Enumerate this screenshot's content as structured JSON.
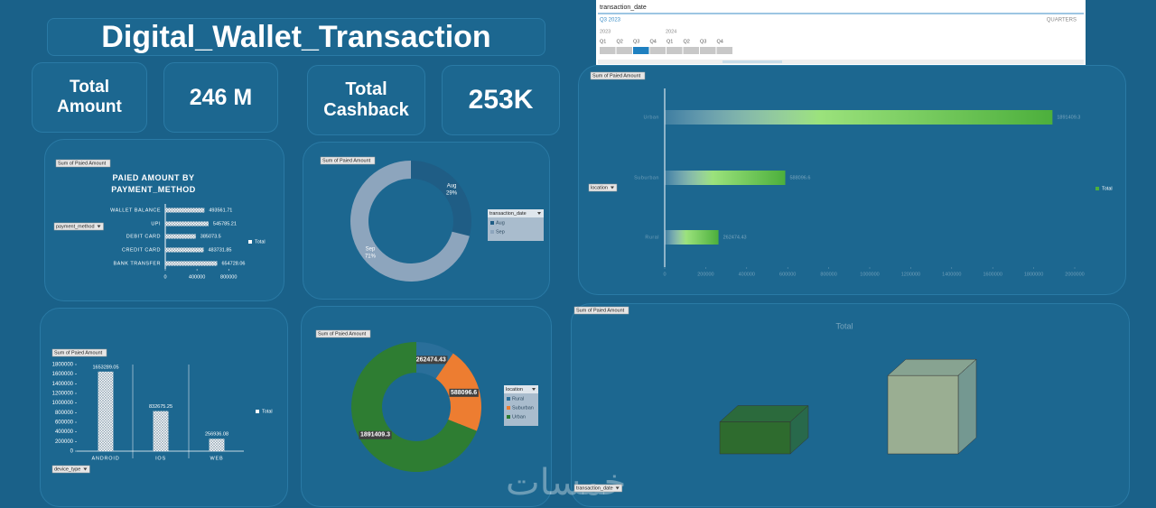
{
  "header": {
    "title": "Digital_Wallet_Transaction"
  },
  "kpis": [
    {
      "label": "Total Amount",
      "value": "246 M"
    },
    {
      "label": "Total Cashback",
      "value": "253K"
    }
  ],
  "timeline": {
    "title": "transaction_date",
    "selection": "Q3 2023",
    "level": "QUARTERS",
    "years": [
      "2023",
      "2024"
    ],
    "quarters": [
      "Q1",
      "Q2",
      "Q3",
      "Q4",
      "Q1",
      "Q2",
      "Q3",
      "Q4"
    ],
    "selected": 2
  },
  "watermark": "خمسات",
  "chart_data": [
    {
      "type": "hbar",
      "field_button": "Sum of Paied Amount",
      "title": "PAIED AMOUNT BY PAYMENT_METHOD",
      "filter": "payment_method",
      "categories": [
        "WALLET BALANCE",
        "UPI",
        "DEBIT CARD",
        "CREDIT CARD",
        "BANK TRANSFER"
      ],
      "series": [
        {
          "name": "Total",
          "color": "#ffffff",
          "values": [
            493561.71,
            545785.21,
            385073.5,
            483731.85,
            654728.06
          ]
        }
      ],
      "xlim": [
        0,
        900000
      ],
      "xticks": [
        0,
        400000,
        800000
      ]
    },
    {
      "type": "donut",
      "field_button": "Sum of Paied Amount",
      "legend_title": "transaction_date",
      "categories": [
        "Aug",
        "Sep"
      ],
      "values": [
        29,
        71
      ],
      "value_labels": [
        "29%",
        "71%"
      ],
      "colors": [
        "#1f5d85",
        "#8da5bd"
      ]
    },
    {
      "type": "hbar",
      "field_button": "Sum of Paied Amount",
      "filter": "location",
      "categories": [
        "Urban",
        "Suburban",
        "Rural"
      ],
      "series": [
        {
          "name": "Total",
          "color": "#4caf3c",
          "values": [
            1891409.3,
            588096.6,
            262474.43
          ]
        }
      ],
      "xlim": [
        0,
        2000000
      ],
      "xticks": [
        0,
        200000,
        400000,
        600000,
        800000,
        1000000,
        1200000,
        1400000,
        1600000,
        1800000,
        2000000
      ]
    },
    {
      "type": "bar",
      "field_button": "Sum of Paied Amount",
      "filter": "device_type",
      "categories": [
        "ANDROID",
        "IOS",
        "WEB"
      ],
      "series": [
        {
          "name": "Total",
          "color": "#ffffff",
          "values": [
            1653289.05,
            832675.25,
            256936.08
          ]
        }
      ],
      "ylim": [
        0,
        1800000
      ],
      "yticks": [
        0,
        200000,
        400000,
        600000,
        800000,
        1000000,
        1200000,
        1400000,
        1600000,
        1800000
      ]
    },
    {
      "type": "donut",
      "field_button": "Sum of Paied Amount",
      "legend_title": "location",
      "categories": [
        "Rural",
        "Suburban",
        "Urban"
      ],
      "values": [
        262474.43,
        588096.6,
        1891409.3
      ],
      "colors": [
        "#2a6f9a",
        "#ed7d31",
        "#2e7d32"
      ]
    },
    {
      "type": "bar3d",
      "field_button": "Sum of Paied Amount",
      "title": "Total",
      "filter": "transaction_date",
      "categories": [
        null,
        null
      ],
      "values": [
        795175,
        1946805
      ],
      "colors": [
        "#2e6b2e",
        "#9aae92"
      ],
      "ylim": [
        0,
        2400000
      ]
    }
  ]
}
